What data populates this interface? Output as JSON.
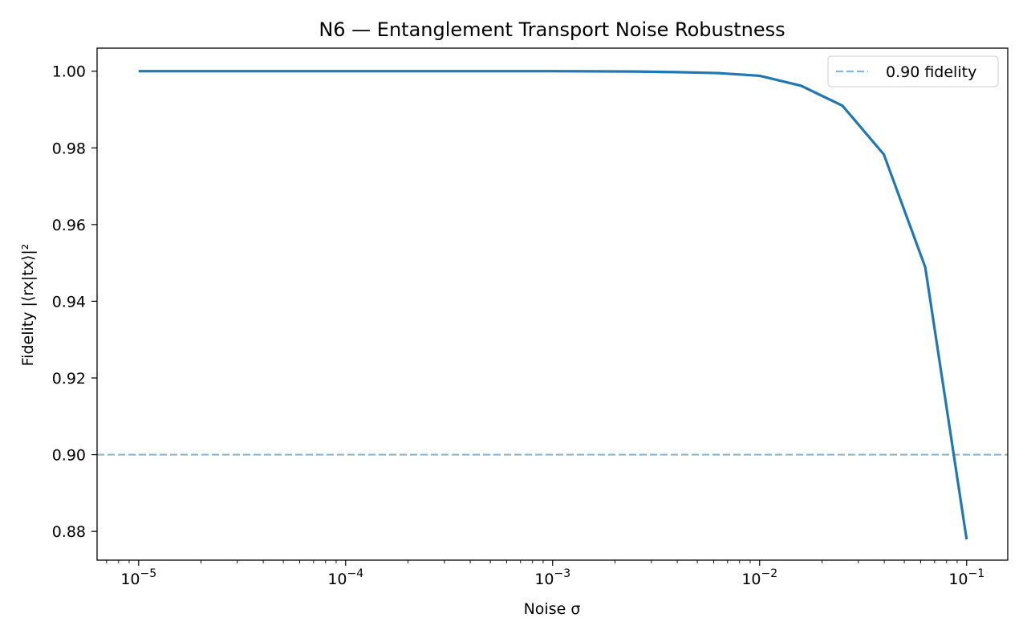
{
  "chart_data": {
    "type": "line",
    "title": "N6 — Entanglement Transport Noise Robustness",
    "xlabel": "Noise σ",
    "ylabel": "Fidelity |⟨rx|tx⟩|²",
    "xscale": "log",
    "xlim": [
      6.3e-06,
      0.158
    ],
    "ylim": [
      0.8725,
      1.006
    ],
    "x_ticks": [
      {
        "value": 1e-05,
        "base": "10",
        "exp": "−5"
      },
      {
        "value": 0.0001,
        "base": "10",
        "exp": "−4"
      },
      {
        "value": 0.001,
        "base": "10",
        "exp": "−3"
      },
      {
        "value": 0.01,
        "base": "10",
        "exp": "−2"
      },
      {
        "value": 0.1,
        "base": "10",
        "exp": "−1"
      }
    ],
    "y_ticks": [
      "0.88",
      "0.90",
      "0.92",
      "0.94",
      "0.96",
      "0.98",
      "1.00"
    ],
    "grid": false,
    "legend_position": "top-right",
    "series": [
      {
        "color": "#1f77b4",
        "style": "solid",
        "x": [
          1e-05,
          1.585e-05,
          2.512e-05,
          3.981e-05,
          6.31e-05,
          0.0001,
          0.0001585,
          0.0002512,
          0.0003981,
          0.000631,
          0.001,
          0.001585,
          0.002512,
          0.003981,
          0.00631,
          0.01,
          0.01585,
          0.02512,
          0.03981,
          0.0631,
          0.1
        ],
        "y": [
          1.0,
          1.0,
          1.0,
          1.0,
          1.0,
          1.0,
          1.0,
          1.0,
          1.0,
          1.0,
          1.0,
          0.99995,
          0.9999,
          0.99975,
          0.9995,
          0.9988,
          0.9962,
          0.991,
          0.9783,
          0.9489,
          0.8779
        ]
      }
    ],
    "reference_lines": [
      {
        "name": "0.90 fidelity",
        "y": 0.9,
        "color": "#1f77b4",
        "opacity": 0.55,
        "style": "dashed"
      }
    ]
  }
}
